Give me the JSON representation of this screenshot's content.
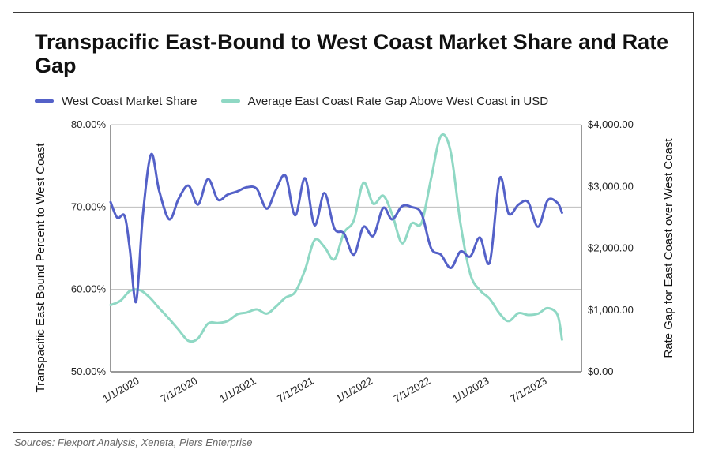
{
  "chart_data": {
    "type": "line",
    "title": "Transpacific East-Bound to West Coast Market Share and Rate Gap",
    "source": "Sources: Flexport Analysis, Xeneta, Piers Enterprise",
    "y_left": {
      "label": "Transpacific East Bound Percent to West Coast",
      "ylim": [
        50,
        80
      ],
      "ticks": [
        "50.00%",
        "60.00%",
        "70.00%",
        "80.00%"
      ],
      "tick_values": [
        50,
        60,
        70,
        80
      ]
    },
    "y_right": {
      "label": "Rate Gap for East Coast over West Coast",
      "ylim": [
        0,
        4000
      ],
      "ticks": [
        "$0.00",
        "$1,000.00",
        "$2,000.00",
        "$3,000.00",
        "$4,000.00"
      ],
      "tick_values": [
        0,
        1000,
        2000,
        3000,
        4000
      ]
    },
    "x_axis": {
      "xlim": [
        "2019-10-01",
        "2023-10-15"
      ],
      "ticks": [
        "1/1/2020",
        "7/1/2020",
        "1/1/2021",
        "7/1/2021",
        "1/1/2022",
        "7/1/2022",
        "1/1/2023",
        "7/1/2023"
      ],
      "tick_dates": [
        "2020-01-01",
        "2020-07-01",
        "2021-01-01",
        "2021-07-01",
        "2022-01-01",
        "2022-07-01",
        "2023-01-01",
        "2023-07-01"
      ]
    },
    "grid": "horizontal-major",
    "legend_position": "top-left",
    "series": [
      {
        "name": "West Coast Market Share",
        "axis": "left",
        "color": "#5461c8",
        "points": [
          [
            "2019-10-01",
            70.6
          ],
          [
            "2019-10-22",
            68.7
          ],
          [
            "2019-11-14",
            68.9
          ],
          [
            "2019-11-30",
            65.0
          ],
          [
            "2019-12-20",
            58.5
          ],
          [
            "2020-01-10",
            69.0
          ],
          [
            "2020-02-05",
            76.4
          ],
          [
            "2020-03-01",
            72.0
          ],
          [
            "2020-04-02",
            68.5
          ],
          [
            "2020-05-01",
            71.0
          ],
          [
            "2020-06-01",
            72.6
          ],
          [
            "2020-07-01",
            70.3
          ],
          [
            "2020-08-01",
            73.4
          ],
          [
            "2020-09-01",
            70.9
          ],
          [
            "2020-10-01",
            71.5
          ],
          [
            "2020-11-01",
            71.9
          ],
          [
            "2020-12-01",
            72.4
          ],
          [
            "2021-01-01",
            72.2
          ],
          [
            "2021-02-01",
            69.8
          ],
          [
            "2021-03-01",
            72.0
          ],
          [
            "2021-04-01",
            73.8
          ],
          [
            "2021-05-01",
            69.0
          ],
          [
            "2021-06-01",
            73.5
          ],
          [
            "2021-07-01",
            67.8
          ],
          [
            "2021-08-01",
            71.7
          ],
          [
            "2021-09-01",
            67.4
          ],
          [
            "2021-10-01",
            66.8
          ],
          [
            "2021-11-01",
            64.2
          ],
          [
            "2021-12-01",
            67.6
          ],
          [
            "2022-01-01",
            66.5
          ],
          [
            "2022-02-01",
            69.9
          ],
          [
            "2022-03-01",
            68.5
          ],
          [
            "2022-04-01",
            70.1
          ],
          [
            "2022-05-01",
            70.0
          ],
          [
            "2022-06-01",
            69.2
          ],
          [
            "2022-07-01",
            65.0
          ],
          [
            "2022-08-01",
            64.2
          ],
          [
            "2022-09-01",
            62.6
          ],
          [
            "2022-10-01",
            64.6
          ],
          [
            "2022-11-01",
            64.0
          ],
          [
            "2022-12-01",
            66.3
          ],
          [
            "2023-01-01",
            63.3
          ],
          [
            "2023-02-01",
            73.5
          ],
          [
            "2023-03-01",
            69.2
          ],
          [
            "2023-04-01",
            70.3
          ],
          [
            "2023-05-01",
            70.6
          ],
          [
            "2023-06-01",
            67.6
          ],
          [
            "2023-07-01",
            70.8
          ],
          [
            "2023-08-01",
            70.5
          ],
          [
            "2023-08-15",
            69.3
          ]
        ]
      },
      {
        "name": "Average East Coast Rate Gap Above West Coast in USD",
        "axis": "right",
        "color": "#8fd8c4",
        "points": [
          [
            "2019-10-01",
            1080
          ],
          [
            "2019-11-01",
            1150
          ],
          [
            "2019-12-01",
            1310
          ],
          [
            "2020-01-01",
            1320
          ],
          [
            "2020-02-01",
            1200
          ],
          [
            "2020-03-01",
            1030
          ],
          [
            "2020-04-01",
            860
          ],
          [
            "2020-05-01",
            680
          ],
          [
            "2020-06-01",
            500
          ],
          [
            "2020-07-01",
            540
          ],
          [
            "2020-08-01",
            780
          ],
          [
            "2020-09-01",
            790
          ],
          [
            "2020-10-01",
            820
          ],
          [
            "2020-11-01",
            930
          ],
          [
            "2020-12-01",
            960
          ],
          [
            "2021-01-01",
            1010
          ],
          [
            "2021-02-01",
            940
          ],
          [
            "2021-03-01",
            1050
          ],
          [
            "2021-04-01",
            1200
          ],
          [
            "2021-05-01",
            1290
          ],
          [
            "2021-06-01",
            1650
          ],
          [
            "2021-07-01",
            2130
          ],
          [
            "2021-08-01",
            2020
          ],
          [
            "2021-09-01",
            1820
          ],
          [
            "2021-10-01",
            2250
          ],
          [
            "2021-11-01",
            2450
          ],
          [
            "2021-12-01",
            3060
          ],
          [
            "2022-01-01",
            2720
          ],
          [
            "2022-02-01",
            2850
          ],
          [
            "2022-03-01",
            2550
          ],
          [
            "2022-04-01",
            2080
          ],
          [
            "2022-05-01",
            2400
          ],
          [
            "2022-06-01",
            2410
          ],
          [
            "2022-07-01",
            3130
          ],
          [
            "2022-08-01",
            3820
          ],
          [
            "2022-09-01",
            3550
          ],
          [
            "2022-10-01",
            2400
          ],
          [
            "2022-11-01",
            1580
          ],
          [
            "2022-12-01",
            1320
          ],
          [
            "2023-01-01",
            1180
          ],
          [
            "2023-02-01",
            940
          ],
          [
            "2023-03-01",
            820
          ],
          [
            "2023-04-01",
            950
          ],
          [
            "2023-05-01",
            920
          ],
          [
            "2023-06-01",
            940
          ],
          [
            "2023-07-01",
            1030
          ],
          [
            "2023-08-01",
            920
          ],
          [
            "2023-08-15",
            520
          ]
        ]
      }
    ]
  }
}
